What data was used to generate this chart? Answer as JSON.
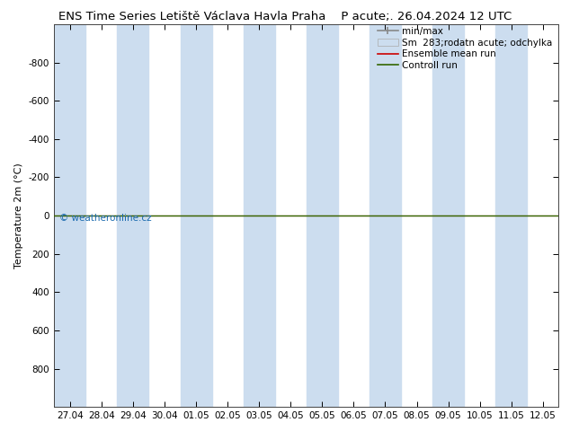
{
  "title_left": "ENS Time Series Letiště Václava Havla Praha",
  "title_right": "P acute;. 26.04.2024 12 UTC",
  "ylabel": "Temperature 2m (°C)",
  "ylim_top": -1000,
  "ylim_bottom": 1000,
  "yticks": [
    -800,
    -600,
    -400,
    -200,
    0,
    200,
    400,
    600,
    800
  ],
  "xtick_labels": [
    "27.04",
    "28.04",
    "29.04",
    "30.04",
    "01.05",
    "02.05",
    "03.05",
    "04.05",
    "05.05",
    "06.05",
    "07.05",
    "08.05",
    "09.05",
    "10.05",
    "11.05",
    "12.05"
  ],
  "xtick_positions": [
    0,
    1,
    2,
    3,
    4,
    5,
    6,
    7,
    8,
    9,
    10,
    11,
    12,
    13,
    14,
    15
  ],
  "blue_band_positions": [
    0,
    2,
    4,
    6,
    8,
    10,
    12,
    14
  ],
  "blue_band_color": "#ccddef",
  "green_line_y": 0,
  "green_line_color": "#336600",
  "red_line_color": "#cc0000",
  "background_color": "#ffffff",
  "watermark": "© weatheronline.cz",
  "watermark_color": "#1a6aaf",
  "title_fontsize": 9.5,
  "axis_fontsize": 8,
  "tick_fontsize": 7.5,
  "legend_fontsize": 7.5
}
